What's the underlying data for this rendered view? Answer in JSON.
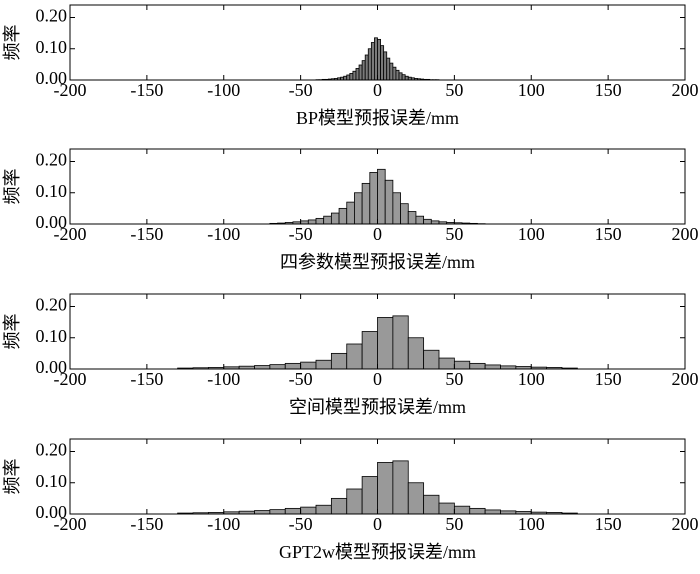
{
  "chart_data": [
    {
      "type": "histogram",
      "xlabel": "BP模型预报误差/mm",
      "ylabel": "频率",
      "color": "#7a7a7a",
      "bins": [
        -40,
        -38,
        -36,
        -34,
        -32,
        -30,
        -28,
        -26,
        -24,
        -22,
        -20,
        -18,
        -16,
        -14,
        -12,
        -10,
        -8,
        -6,
        -4,
        -2,
        0,
        2,
        4,
        6,
        8,
        10,
        12,
        14,
        16,
        18,
        20,
        22,
        24,
        26,
        28,
        30,
        32,
        34,
        36,
        38,
        40
      ],
      "values": [
        0.001,
        0.001,
        0.002,
        0.002,
        0.003,
        0.004,
        0.005,
        0.007,
        0.009,
        0.012,
        0.016,
        0.021,
        0.028,
        0.037,
        0.048,
        0.062,
        0.08,
        0.1,
        0.12,
        0.135,
        0.13,
        0.11,
        0.09,
        0.07,
        0.054,
        0.041,
        0.031,
        0.023,
        0.017,
        0.012,
        0.009,
        0.007,
        0.005,
        0.004,
        0.003,
        0.002,
        0.002,
        0.001,
        0.001,
        0.001
      ],
      "xlim": [
        -200,
        200
      ],
      "ylim": [
        0,
        0.24
      ],
      "xticks": [
        -200,
        -150,
        -100,
        -50,
        0,
        50,
        100,
        150,
        200
      ],
      "yticks": [
        {
          "value": 0,
          "label": "0.00"
        },
        {
          "value": 0.1,
          "label": "0.10"
        },
        {
          "value": 0.2,
          "label": "0.20"
        }
      ]
    },
    {
      "type": "histogram",
      "xlabel": "四参数模型预报误差/mm",
      "ylabel": "频率",
      "color": "#999999",
      "bins": [
        -70,
        -65,
        -60,
        -55,
        -50,
        -45,
        -40,
        -35,
        -30,
        -25,
        -20,
        -15,
        -10,
        -5,
        0,
        5,
        10,
        15,
        20,
        25,
        30,
        35,
        40,
        45,
        50,
        55,
        60,
        65,
        70
      ],
      "values": [
        0.002,
        0.003,
        0.005,
        0.007,
        0.01,
        0.013,
        0.018,
        0.025,
        0.035,
        0.05,
        0.07,
        0.1,
        0.13,
        0.165,
        0.175,
        0.14,
        0.1,
        0.065,
        0.04,
        0.025,
        0.015,
        0.01,
        0.007,
        0.005,
        0.004,
        0.003,
        0.002,
        0.001
      ],
      "xlim": [
        -200,
        200
      ],
      "ylim": [
        0,
        0.24
      ],
      "xticks": [
        -200,
        -150,
        -100,
        -50,
        0,
        50,
        100,
        150,
        200
      ],
      "yticks": [
        {
          "value": 0,
          "label": "0.00"
        },
        {
          "value": 0.1,
          "label": "0.10"
        },
        {
          "value": 0.2,
          "label": "0.20"
        }
      ]
    },
    {
      "type": "histogram",
      "xlabel": "空间模型预报误差/mm",
      "ylabel": "频率",
      "color": "#999999",
      "bins": [
        -130,
        -120,
        -110,
        -100,
        -90,
        -80,
        -70,
        -60,
        -50,
        -40,
        -30,
        -20,
        -10,
        0,
        10,
        20,
        30,
        40,
        50,
        60,
        70,
        80,
        90,
        100,
        110,
        120,
        130
      ],
      "values": [
        0.003,
        0.004,
        0.005,
        0.007,
        0.009,
        0.011,
        0.014,
        0.018,
        0.022,
        0.028,
        0.05,
        0.08,
        0.12,
        0.165,
        0.17,
        0.1,
        0.06,
        0.035,
        0.025,
        0.018,
        0.013,
        0.01,
        0.008,
        0.006,
        0.005,
        0.003
      ],
      "xlim": [
        -200,
        200
      ],
      "ylim": [
        0,
        0.24
      ],
      "xticks": [
        -200,
        -150,
        -100,
        -50,
        0,
        50,
        100,
        150,
        200
      ],
      "yticks": [
        {
          "value": 0,
          "label": "0.00"
        },
        {
          "value": 0.1,
          "label": "0.10"
        },
        {
          "value": 0.2,
          "label": "0.20"
        }
      ]
    },
    {
      "type": "histogram",
      "xlabel": "GPT2w模型预报误差/mm",
      "ylabel": "频率",
      "color": "#999999",
      "bins": [
        -130,
        -120,
        -110,
        -100,
        -90,
        -80,
        -70,
        -60,
        -50,
        -40,
        -30,
        -20,
        -10,
        0,
        10,
        20,
        30,
        40,
        50,
        60,
        70,
        80,
        90,
        100,
        110,
        120,
        130
      ],
      "values": [
        0.003,
        0.004,
        0.005,
        0.007,
        0.009,
        0.011,
        0.014,
        0.018,
        0.022,
        0.028,
        0.05,
        0.08,
        0.12,
        0.165,
        0.17,
        0.1,
        0.06,
        0.035,
        0.025,
        0.018,
        0.013,
        0.01,
        0.008,
        0.006,
        0.005,
        0.003
      ],
      "xlim": [
        -200,
        200
      ],
      "ylim": [
        0,
        0.24
      ],
      "xticks": [
        -200,
        -150,
        -100,
        -50,
        0,
        50,
        100,
        150,
        200
      ],
      "yticks": [
        {
          "value": 0,
          "label": "0.00"
        },
        {
          "value": 0.1,
          "label": "0.10"
        },
        {
          "value": 0.2,
          "label": "0.20"
        }
      ]
    }
  ]
}
